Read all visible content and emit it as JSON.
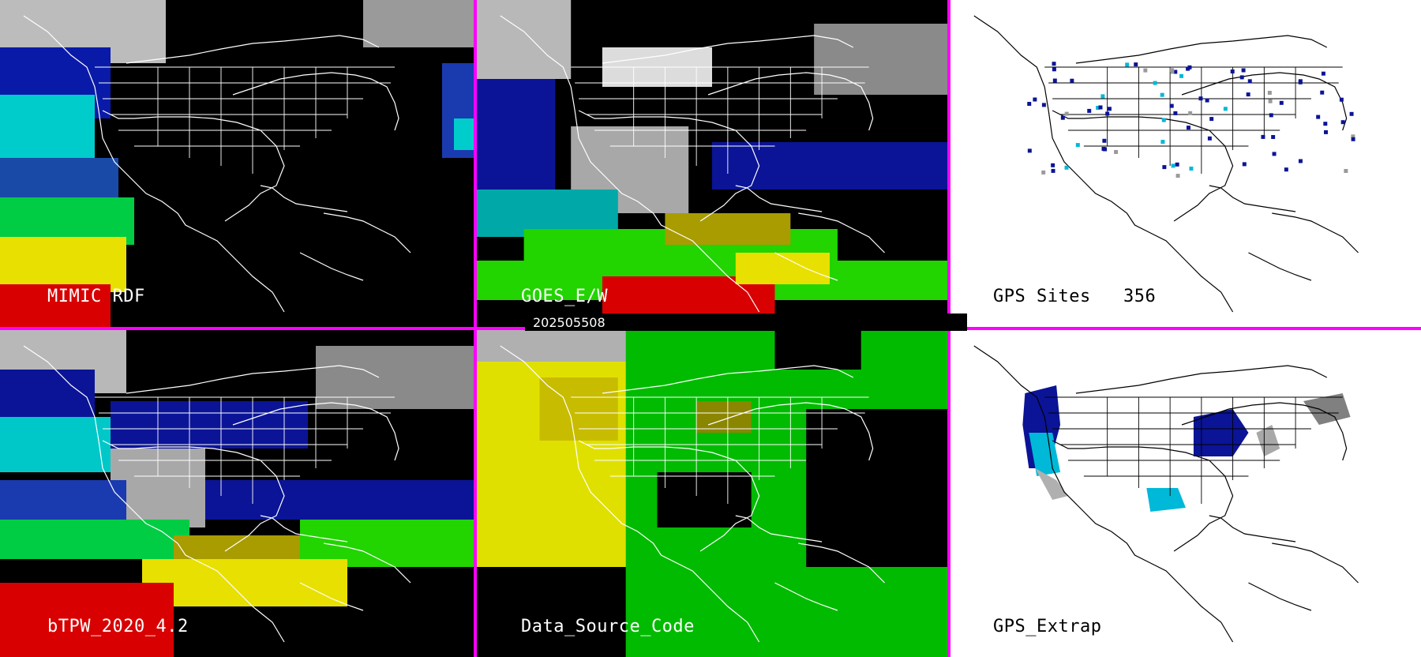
{
  "panels": [
    {
      "id": "mimic",
      "label": "MIMIC RDF"
    },
    {
      "id": "goes",
      "label": "GOES_E/W"
    },
    {
      "id": "gps-sites",
      "label": "GPS Sites",
      "count": "356"
    },
    {
      "id": "btpw",
      "label": "bTPW_2020_4.2"
    },
    {
      "id": "dsc",
      "label": "Data_Source_Code"
    },
    {
      "id": "gps-extrap",
      "label": "GPS_Extrap"
    }
  ],
  "timestamp": "202505508",
  "colors": {
    "separator": "#ff00ff",
    "label_on_dark": "#ffffff",
    "label_on_light": "#000000",
    "map_outline_dark": "#ffffff",
    "map_outline_light": "#000000"
  }
}
